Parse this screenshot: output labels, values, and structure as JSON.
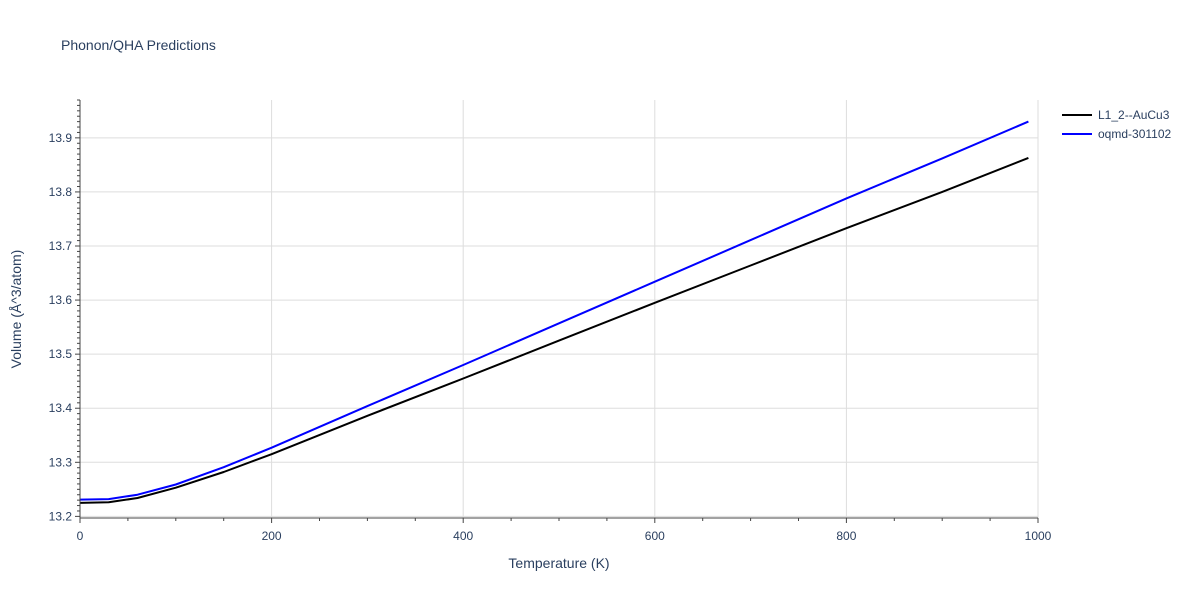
{
  "chart_data": {
    "type": "line",
    "title": "Phonon/QHA Predictions",
    "xlabel": "Temperature (K)",
    "ylabel": "Volume (Å^3/atom)",
    "xlim": [
      0,
      1000
    ],
    "ylim": [
      13.197,
      13.97
    ],
    "x_ticks": [
      0,
      200,
      400,
      600,
      800,
      1000
    ],
    "x_tick_labels": [
      "0",
      "200",
      "400",
      "600",
      "800",
      "1000"
    ],
    "y_ticks": [
      13.2,
      13.3,
      13.4,
      13.5,
      13.6,
      13.7,
      13.8,
      13.9
    ],
    "y_tick_labels": [
      "13.2",
      "13.3",
      "13.4",
      "13.5",
      "13.6",
      "13.7",
      "13.8",
      "13.9"
    ],
    "grid": true,
    "legend_position": "top-right",
    "series": [
      {
        "name": "L1_2--AuCu3",
        "color": "#000000",
        "x": [
          0,
          30,
          60,
          100,
          150,
          200,
          300,
          400,
          500,
          600,
          700,
          800,
          900,
          990
        ],
        "y": [
          13.225,
          13.226,
          13.234,
          13.253,
          13.282,
          13.315,
          13.386,
          13.455,
          13.525,
          13.595,
          13.664,
          13.733,
          13.8,
          13.863
        ]
      },
      {
        "name": "oqmd-301102",
        "color": "#0000ff",
        "x": [
          0,
          30,
          60,
          100,
          150,
          200,
          300,
          400,
          500,
          600,
          700,
          800,
          900,
          990
        ],
        "y": [
          13.231,
          13.232,
          13.24,
          13.259,
          13.291,
          13.327,
          13.404,
          13.48,
          13.557,
          13.634,
          13.711,
          13.788,
          13.862,
          13.93
        ]
      }
    ]
  }
}
